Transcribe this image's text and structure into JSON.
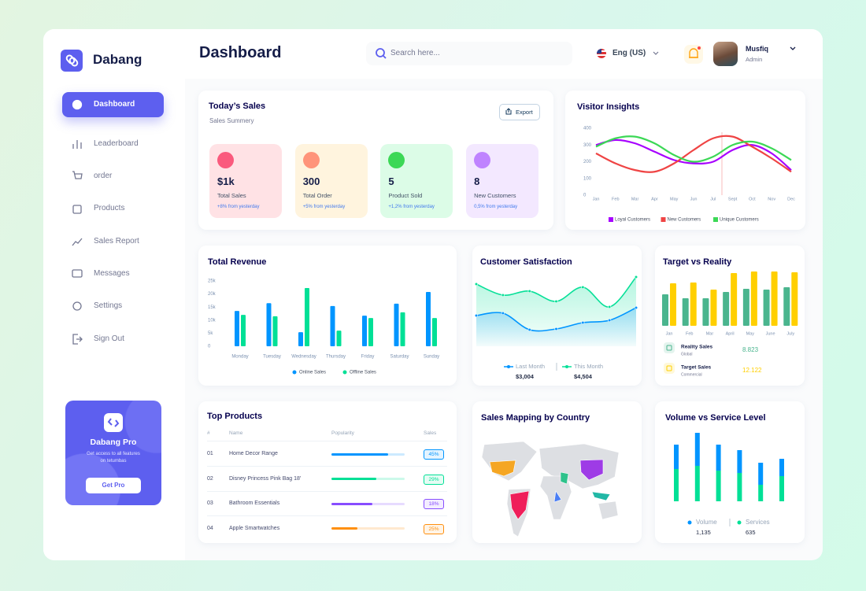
{
  "brand": "Dabang",
  "header": {
    "title": "Dashboard",
    "search_placeholder": "Search here...",
    "language": "Eng (US)",
    "user": {
      "name": "Musfiq",
      "role": "Admin"
    }
  },
  "nav": [
    "Dashboard",
    "Leaderboard",
    "order",
    "Products",
    "Sales Report",
    "Messages",
    "Settings",
    "Sign Out"
  ],
  "promo": {
    "title": "Dabang Pro",
    "text": "Get access to all features on tetumbas",
    "button": "Get Pro"
  },
  "todays_sales": {
    "title": "Today’s Sales",
    "subtitle": "Sales Summery",
    "button": "Export",
    "cards": [
      {
        "value": "$1k",
        "label": "Total Sales",
        "change": "+8% from yesterday"
      },
      {
        "value": "300",
        "label": "Total Order",
        "change": "+5% from yesterday"
      },
      {
        "value": "5",
        "label": "Product Sold",
        "change": "+1,2% from yesterday"
      },
      {
        "value": "8",
        "label": "New Customers",
        "change": "0,5% from yesterday"
      }
    ]
  },
  "top_products": {
    "title": "Top Products",
    "columns": [
      "#",
      "Name",
      "Popularity",
      "Sales"
    ],
    "rows": [
      {
        "rank": "01",
        "name": "Home Decor Range",
        "popularity": 77,
        "sales": "45%",
        "color": "#0095ff"
      },
      {
        "rank": "02",
        "name": "Disney Princess Pink Bag 18'",
        "popularity": 61,
        "sales": "29%",
        "color": "#00e096"
      },
      {
        "rank": "03",
        "name": "Bathroom Essentials",
        "popularity": 56,
        "sales": "18%",
        "color": "#884dff"
      },
      {
        "rank": "04",
        "name": "Apple Smartwatches",
        "popularity": 35,
        "sales": "25%",
        "color": "#ff8f0d"
      }
    ]
  },
  "sales_mapping": {
    "title": "Sales Mapping by Country"
  },
  "chart_data": [
    {
      "type": "line",
      "title": "Visitor Insights",
      "categories": [
        "Jan",
        "Feb",
        "Mar",
        "Apr",
        "May",
        "Jun",
        "Jul",
        "Sept",
        "Oct",
        "Nov",
        "Dec"
      ],
      "series": [
        {
          "name": "Loyal Customers",
          "color": "#a700ff",
          "values": [
            300,
            330,
            310,
            260,
            210,
            190,
            200,
            270,
            300,
            250,
            150
          ]
        },
        {
          "name": "New Customers",
          "color": "#ef4444",
          "values": [
            250,
            190,
            150,
            140,
            190,
            270,
            340,
            350,
            290,
            220,
            140
          ]
        },
        {
          "name": "Unique Customers",
          "color": "#3cd856",
          "values": [
            290,
            340,
            350,
            310,
            240,
            200,
            230,
            300,
            320,
            280,
            210
          ]
        }
      ],
      "ylim": [
        0,
        400
      ],
      "yticks": [
        0,
        100,
        200,
        300,
        400
      ],
      "grid": false
    },
    {
      "type": "bar",
      "title": "Total Revenue",
      "categories": [
        "Monday",
        "Tuesday",
        "Wednesday",
        "Thursday",
        "Friday",
        "Saturday",
        "Sunday"
      ],
      "series": [
        {
          "name": "Online Sales",
          "color": "#0095ff",
          "values": [
            13500,
            16500,
            5400,
            15400,
            11700,
            16300,
            20800
          ]
        },
        {
          "name": "Offline Sales",
          "color": "#00e096",
          "values": [
            12000,
            11500,
            22300,
            6000,
            10800,
            13000,
            10800
          ]
        }
      ],
      "ylim": [
        0,
        25000
      ],
      "yticks": [
        0,
        {
          "value": 5000,
          "label": "5k"
        },
        {
          "value": 10000,
          "label": "10k"
        },
        {
          "value": 15000,
          "label": "15k"
        },
        {
          "value": 20000,
          "label": "20k"
        },
        {
          "value": 25000,
          "label": "25k"
        }
      ],
      "grid": false
    },
    {
      "type": "area",
      "title": "Customer Satisfaction",
      "series": [
        {
          "name": "Last Month",
          "color": "#0095ff",
          "total": "$3,004",
          "values": [
            39,
            42,
            21,
            22,
            30,
            33,
            49
          ]
        },
        {
          "name": "This Month",
          "color": "#07e098",
          "total": "$4,504",
          "values": [
            79,
            65,
            70,
            57,
            75,
            50,
            88
          ]
        }
      ]
    },
    {
      "type": "bar",
      "title": "Target vs Reality",
      "categories": [
        "Jan",
        "Feb",
        "Mar",
        "April",
        "May",
        "June",
        "July"
      ],
      "series": [
        {
          "name": "Reality Sales",
          "subtitle": "Global",
          "total": "8.823",
          "color": "#4ab58e",
          "values": [
            40,
            35,
            35,
            43,
            47,
            46,
            49
          ]
        },
        {
          "name": "Target Sales",
          "subtitle": "Commercial",
          "total": "12.122",
          "color": "#ffcf00",
          "values": [
            54,
            55,
            46,
            67,
            69,
            69,
            68
          ]
        }
      ]
    },
    {
      "type": "bar",
      "stacked": true,
      "title": "Volume vs Service Level",
      "series": [
        {
          "name": "Volume",
          "total": "1,135",
          "color": "#0095ff",
          "values": [
            31,
            42,
            33,
            29,
            28,
            22
          ]
        },
        {
          "name": "Services",
          "total": "635",
          "color": "#00e096",
          "values": [
            41,
            45,
            39,
            36,
            21,
            32
          ]
        }
      ]
    }
  ]
}
